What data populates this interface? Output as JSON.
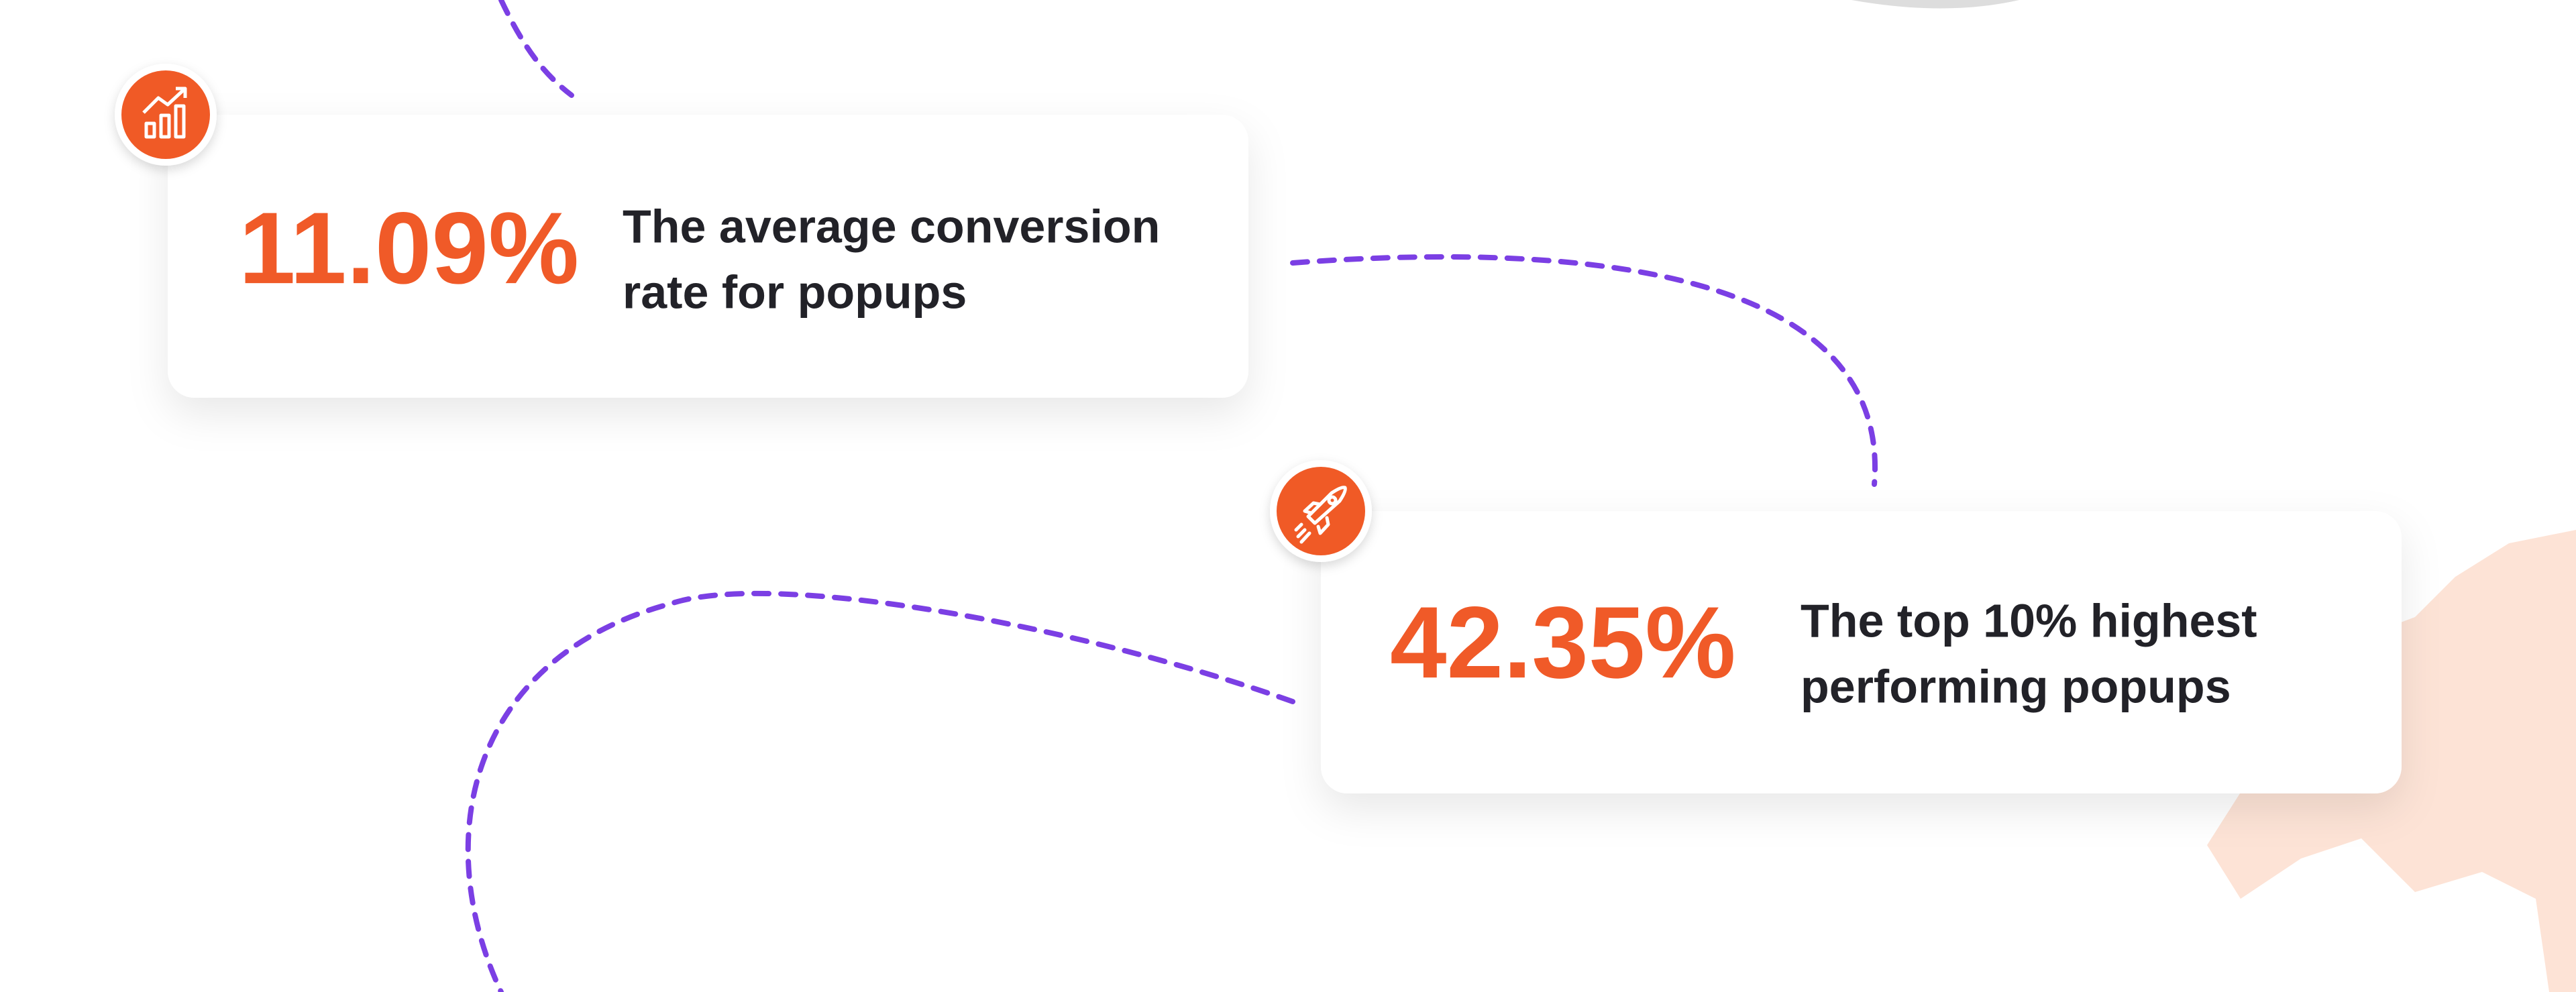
{
  "cards": [
    {
      "stat": "11.09%",
      "lines": [
        "The average conversion",
        "rate for popups"
      ]
    },
    {
      "stat": "42.35%",
      "lines": [
        "The top 10% highest",
        "performing popups"
      ]
    }
  ]
}
